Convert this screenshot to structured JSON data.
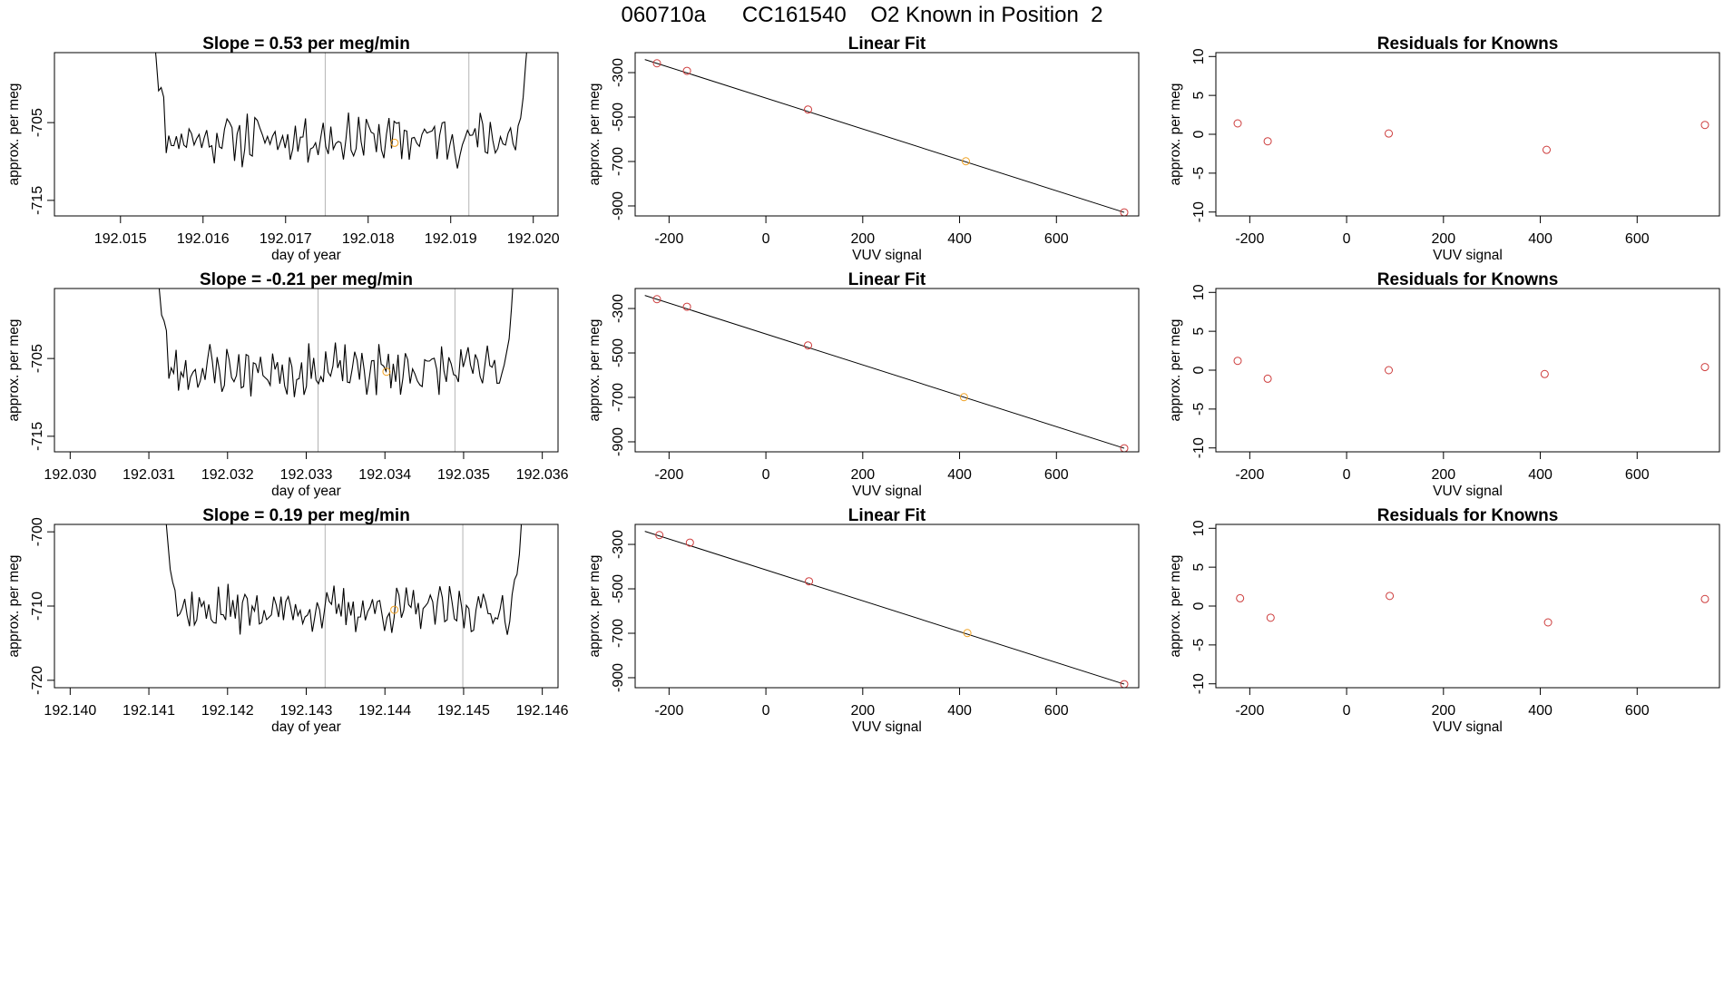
{
  "page_title": "060710a      CC161540    O2 Known in Position  2",
  "colors": {
    "line": "#000000",
    "point_red": "#cd3c3c",
    "point_orange": "#f0a020",
    "vline": "#b4b4b4",
    "frame": "#000000"
  },
  "chart_data": [
    {
      "type": "line",
      "row": 0,
      "col": 0,
      "title": "Slope =  0.53  per meg/min",
      "xlabel": "day of year",
      "ylabel": "approx. per meg",
      "xlim": [
        192.0142,
        192.0203
      ],
      "ylim": [
        -717,
        -696
      ],
      "xticks": [
        "192.015",
        "192.016",
        "192.017",
        "192.018",
        "192.019",
        "192.020"
      ],
      "yticks": [
        "-705",
        "-715"
      ],
      "vlines": [
        192.01748,
        192.01922
      ],
      "marker": {
        "x": 192.01832,
        "y": -707.6
      },
      "series": {
        "x_start": 192.01537,
        "x_end": 192.01997,
        "y_start": -690,
        "y_end": -690,
        "base": -707,
        "amp": 2.6,
        "seed": 11
      }
    },
    {
      "type": "scatter_fit",
      "row": 0,
      "col": 1,
      "title": "Linear Fit",
      "xlabel": "VUV signal",
      "ylabel": "approx. per meg",
      "xlim": [
        -270,
        770
      ],
      "ylim": [
        -945,
        -210
      ],
      "xticks": [
        "-200",
        "0",
        "200",
        "400",
        "600"
      ],
      "yticks": [
        "-300",
        "-500",
        "-700",
        "-900"
      ],
      "x": [
        -225,
        -163,
        87,
        413,
        740
      ],
      "y": [
        -258,
        -292,
        -466,
        -699,
        -929
      ],
      "point_colors": [
        "red",
        "red",
        "red",
        "orange",
        "red"
      ],
      "fit_line": [
        [
          -250,
          -241
        ],
        [
          740,
          -929
        ]
      ]
    },
    {
      "type": "scatter",
      "row": 0,
      "col": 2,
      "title": "Residuals for Knowns",
      "xlabel": "VUV signal",
      "ylabel": "approx. per meg",
      "xlim": [
        -270,
        770
      ],
      "ylim": [
        -10.5,
        10.5
      ],
      "xticks": [
        "-200",
        "0",
        "200",
        "400",
        "600"
      ],
      "yticks": [
        "-10",
        "-5",
        "0",
        "5",
        "10"
      ],
      "x": [
        -225,
        -163,
        87,
        413,
        740
      ],
      "y": [
        1.4,
        -0.9,
        0.1,
        -2.0,
        1.2
      ]
    },
    {
      "type": "line",
      "row": 1,
      "col": 0,
      "title": "Slope =  -0.21  per meg/min",
      "xlabel": "day of year",
      "ylabel": "approx. per meg",
      "xlim": [
        192.0298,
        192.0362
      ],
      "ylim": [
        -717,
        -696
      ],
      "xticks": [
        "192.030",
        "192.031",
        "192.032",
        "192.033",
        "192.034",
        "192.035",
        "192.036"
      ],
      "yticks": [
        "-705",
        "-715"
      ],
      "vlines": [
        192.03315,
        192.03489
      ],
      "marker": {
        "x": 192.03402,
        "y": -706.7
      },
      "series": {
        "x_start": 192.03107,
        "x_end": 192.03567,
        "y_start": -690,
        "y_end": -690,
        "base": -706.5,
        "amp": 2.6,
        "seed": 23
      }
    },
    {
      "type": "scatter_fit",
      "row": 1,
      "col": 1,
      "title": "Linear Fit",
      "xlabel": "VUV signal",
      "ylabel": "approx. per meg",
      "xlim": [
        -270,
        770
      ],
      "ylim": [
        -945,
        -210
      ],
      "xticks": [
        "-200",
        "0",
        "200",
        "400",
        "600"
      ],
      "yticks": [
        "-300",
        "-500",
        "-700",
        "-900"
      ],
      "x": [
        -225,
        -163,
        87,
        409,
        740
      ],
      "y": [
        -258,
        -292,
        -466,
        -699,
        -929
      ],
      "point_colors": [
        "red",
        "red",
        "red",
        "orange",
        "red"
      ],
      "fit_line": [
        [
          -250,
          -241
        ],
        [
          740,
          -929
        ]
      ]
    },
    {
      "type": "scatter",
      "row": 1,
      "col": 2,
      "title": "Residuals for Knowns",
      "xlabel": "VUV signal",
      "ylabel": "approx. per meg",
      "xlim": [
        -270,
        770
      ],
      "ylim": [
        -10.5,
        10.5
      ],
      "xticks": [
        "-200",
        "0",
        "200",
        "400",
        "600"
      ],
      "yticks": [
        "-10",
        "-5",
        "0",
        "5",
        "10"
      ],
      "x": [
        -225,
        -163,
        87,
        409,
        740
      ],
      "y": [
        1.2,
        -1.1,
        0.0,
        -0.5,
        0.4
      ]
    },
    {
      "type": "line",
      "row": 2,
      "col": 0,
      "title": "Slope =  0.19  per meg/min",
      "xlabel": "day of year",
      "ylabel": "approx. per meg",
      "xlim": [
        192.1398,
        192.1462
      ],
      "ylim": [
        -721,
        -699
      ],
      "xticks": [
        "192.140",
        "192.141",
        "192.142",
        "192.143",
        "192.144",
        "192.145",
        "192.146"
      ],
      "yticks": [
        "-700",
        "-710",
        "-720"
      ],
      "vlines": [
        192.14324,
        192.14499
      ],
      "marker": {
        "x": 192.14412,
        "y": -710.5
      },
      "series": {
        "x_start": 192.14118,
        "x_end": 192.14577,
        "y_start": -695,
        "y_end": -695,
        "base": -710.5,
        "amp": 2.4,
        "seed": 37
      }
    },
    {
      "type": "scatter_fit",
      "row": 2,
      "col": 1,
      "title": "Linear Fit",
      "xlabel": "VUV signal",
      "ylabel": "approx. per meg",
      "xlim": [
        -270,
        770
      ],
      "ylim": [
        -945,
        -210
      ],
      "xticks": [
        "-200",
        "0",
        "200",
        "400",
        "600"
      ],
      "yticks": [
        "-300",
        "-500",
        "-700",
        "-900"
      ],
      "x": [
        -220,
        -157,
        89,
        416,
        740
      ],
      "y": [
        -258,
        -292,
        -466,
        -699,
        -929
      ],
      "point_colors": [
        "red",
        "red",
        "red",
        "orange",
        "red"
      ],
      "fit_line": [
        [
          -250,
          -241
        ],
        [
          740,
          -929
        ]
      ]
    },
    {
      "type": "scatter",
      "row": 2,
      "col": 2,
      "title": "Residuals for Knowns",
      "xlabel": "VUV signal",
      "ylabel": "approx. per meg",
      "xlim": [
        -270,
        770
      ],
      "ylim": [
        -10.5,
        10.5
      ],
      "xticks": [
        "-200",
        "0",
        "200",
        "400",
        "600"
      ],
      "yticks": [
        "-10",
        "-5",
        "0",
        "5",
        "10"
      ],
      "x": [
        -220,
        -157,
        89,
        416,
        740
      ],
      "y": [
        1.0,
        -1.5,
        1.3,
        -2.1,
        0.9
      ]
    }
  ]
}
